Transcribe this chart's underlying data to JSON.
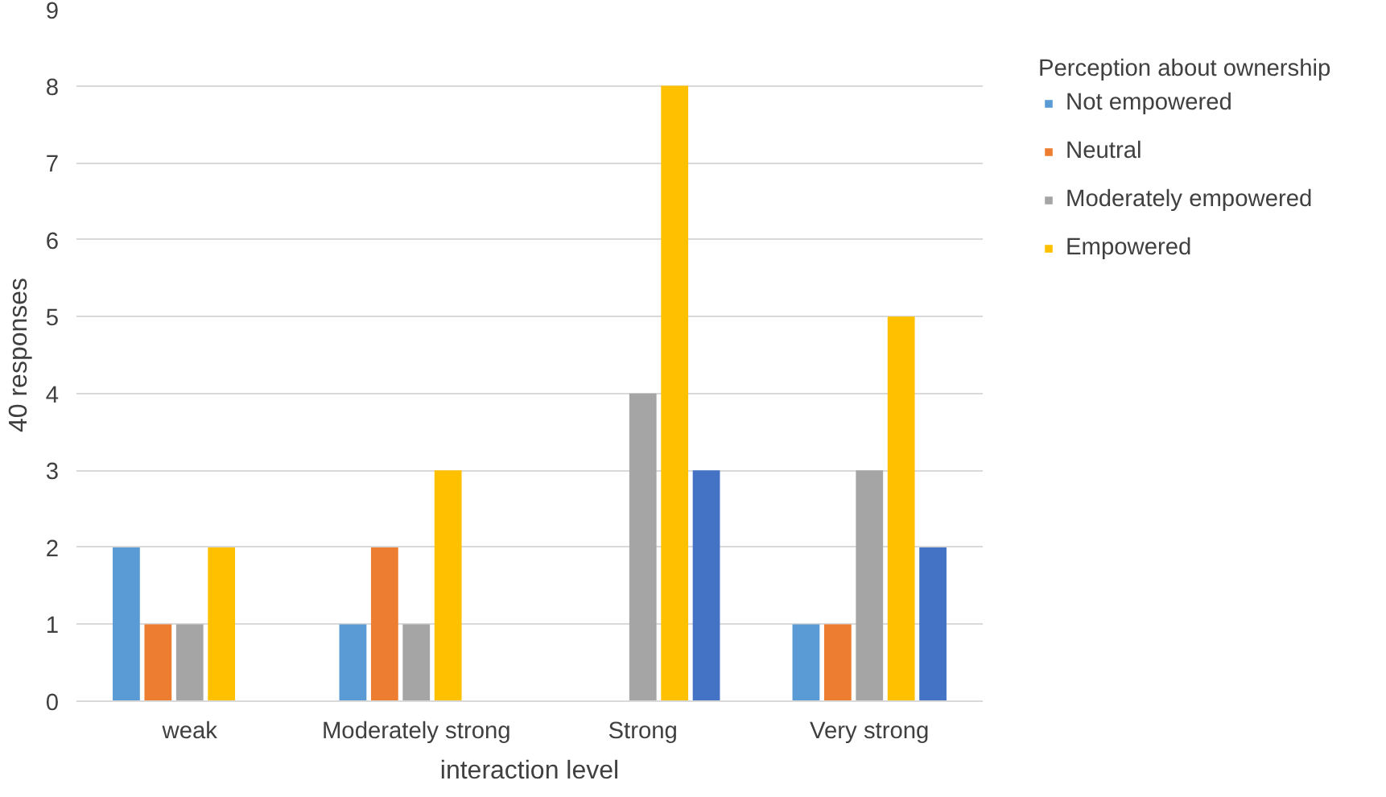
{
  "chart_data": {
    "type": "bar",
    "xlabel": "interaction level",
    "ylabel": "40 responses",
    "legend_title": "Perception about ownership",
    "categories": [
      "weak",
      "Moderately strong",
      "Strong",
      "Very strong"
    ],
    "series": [
      {
        "name": "Not empowered",
        "color": "#5b9bd5",
        "values": [
          2,
          1,
          0,
          1
        ]
      },
      {
        "name": "Neutral",
        "color": "#ed7d31",
        "values": [
          1,
          2,
          0,
          1
        ]
      },
      {
        "name": "Moderately empowered",
        "color": "#a5a5a5",
        "values": [
          1,
          1,
          4,
          3
        ]
      },
      {
        "name": "Empowered",
        "color": "#ffc000",
        "values": [
          2,
          3,
          8,
          5
        ]
      },
      {
        "color": "#4472c4",
        "values": [
          0,
          0,
          3,
          2
        ]
      }
    ],
    "ylim": [
      0,
      9
    ],
    "yticks": [
      0,
      1,
      2,
      3,
      4,
      5,
      6,
      7,
      8,
      9
    ],
    "grid": "y",
    "legend": "right"
  }
}
